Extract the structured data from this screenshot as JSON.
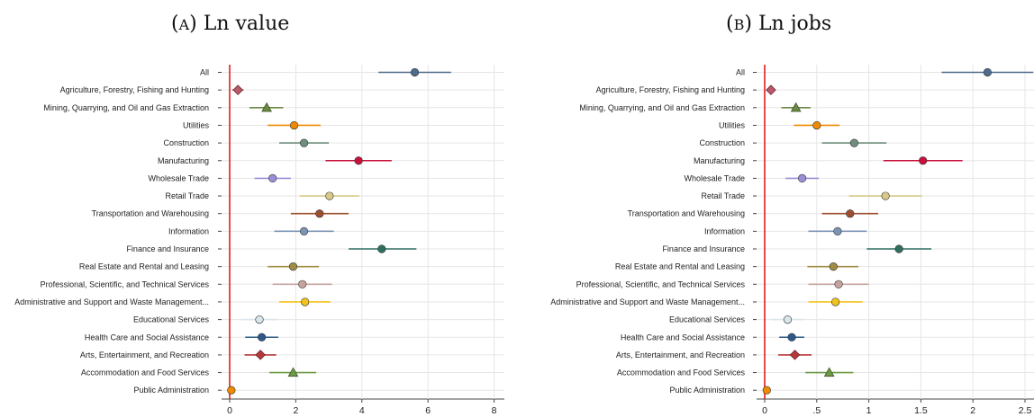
{
  "panels": [
    {
      "letter": "A",
      "title": "Ln value"
    },
    {
      "letter": "B",
      "title": "Ln jobs"
    }
  ],
  "chart_data": [
    {
      "type": "scatter",
      "style": "coefficient plot with horizontal confidence intervals",
      "title": "(A) Ln value",
      "categories": [
        "All",
        "Agriculture, Forestry, Fishing and Hunting",
        "Mining, Quarrying, and Oil and Gas Extraction",
        "Utilities",
        "Construction",
        "Manufacturing",
        "Wholesale Trade",
        "Retail Trade",
        "Transportation and Warehousing",
        "Information",
        "Finance and Insurance",
        "Real Estate and Rental and Leasing",
        "Professional, Scientific, and Technical Services",
        "Administrative and Support and Waste Management...",
        "Educational Services",
        "Health Care and Social Assistance",
        "Arts, Entertainment, and Recreation",
        "Accommodation and Food Services",
        "Public Administration"
      ],
      "estimates": [
        5.6,
        0.25,
        1.12,
        1.95,
        2.25,
        3.9,
        1.3,
        3.02,
        2.72,
        2.25,
        4.6,
        1.92,
        2.2,
        2.28,
        0.9,
        0.97,
        0.93,
        1.92,
        0.05
      ],
      "ci_low": [
        4.5,
        0.08,
        0.6,
        1.15,
        1.5,
        2.9,
        0.75,
        2.12,
        1.85,
        1.35,
        3.6,
        1.15,
        1.3,
        1.5,
        0.35,
        0.47,
        0.45,
        1.2,
        0.05
      ],
      "ci_high": [
        6.7,
        0.42,
        1.62,
        2.75,
        3.0,
        4.9,
        1.85,
        3.92,
        3.6,
        3.15,
        5.65,
        2.7,
        3.1,
        3.05,
        1.45,
        1.47,
        1.41,
        2.62,
        0.05
      ],
      "xlim": [
        -0.3,
        8.2
      ],
      "xticks": [
        "0",
        "2",
        "4",
        "6",
        "8"
      ],
      "reference_line": 0,
      "grid": true
    },
    {
      "type": "scatter",
      "style": "coefficient plot with horizontal confidence intervals",
      "title": "(B) Ln jobs",
      "categories": [
        "All",
        "Agriculture, Forestry, Fishing and Hunting",
        "Mining, Quarrying, and Oil and Gas Extraction",
        "Utilities",
        "Construction",
        "Manufacturing",
        "Wholesale Trade",
        "Retail Trade",
        "Transportation and Warehousing",
        "Information",
        "Finance and Insurance",
        "Real Estate and Rental and Leasing",
        "Professional, Scientific, and Technical Services",
        "Administrative and Support and Waste Management...",
        "Educational Services",
        "Health Care and Social Assistance",
        "Arts, Entertainment, and Recreation",
        "Accommodation and Food Services",
        "Public Administration"
      ],
      "estimates": [
        2.14,
        0.06,
        0.3,
        0.5,
        0.86,
        1.52,
        0.36,
        1.16,
        0.82,
        0.7,
        1.29,
        0.66,
        0.71,
        0.68,
        0.22,
        0.26,
        0.29,
        0.62,
        0.02
      ],
      "ci_low": [
        1.7,
        0.02,
        0.16,
        0.28,
        0.55,
        1.14,
        0.2,
        0.81,
        0.55,
        0.42,
        0.98,
        0.41,
        0.42,
        0.42,
        0.06,
        0.14,
        0.13,
        0.39,
        0.02
      ],
      "ci_high": [
        2.58,
        0.1,
        0.44,
        0.72,
        1.17,
        1.9,
        0.52,
        1.51,
        1.09,
        0.98,
        1.6,
        0.9,
        1.0,
        0.94,
        0.38,
        0.38,
        0.45,
        0.85,
        0.02
      ],
      "xlim": [
        -0.05,
        2.6
      ],
      "xticks": [
        "0",
        ".5",
        "1",
        "1.5",
        "2",
        "2.5"
      ],
      "reference_line": 0,
      "grid": true
    }
  ],
  "markers": [
    {
      "shape": "circle",
      "color": "#4e6a8c"
    },
    {
      "shape": "diamond",
      "color": "#b75a6a"
    },
    {
      "shape": "triangle",
      "color": "#6c8a45"
    },
    {
      "shape": "circle",
      "color": "#ef8a00"
    },
    {
      "shape": "circle",
      "color": "#6f8f7d"
    },
    {
      "shape": "circle",
      "color": "#c8103a"
    },
    {
      "shape": "circle",
      "color": "#9a8fd6"
    },
    {
      "shape": "circle",
      "color": "#d6c98a"
    },
    {
      "shape": "circle",
      "color": "#9c4f32"
    },
    {
      "shape": "circle",
      "color": "#7c94b4"
    },
    {
      "shape": "circle",
      "color": "#2f6f60"
    },
    {
      "shape": "circle",
      "color": "#a08d45"
    },
    {
      "shape": "circle",
      "color": "#c7a39e"
    },
    {
      "shape": "circle",
      "color": "#f4c21c"
    },
    {
      "shape": "circle",
      "color": "#dbe6ec"
    },
    {
      "shape": "circle",
      "color": "#2e5887"
    },
    {
      "shape": "diamond",
      "color": "#b7383a"
    },
    {
      "shape": "triangle",
      "color": "#6c9a45"
    },
    {
      "shape": "circle",
      "color": "#ef8a00"
    }
  ],
  "colors": {
    "reference_line": "#e21e1e",
    "grid": "#e6e6e6",
    "axis": "#444444"
  }
}
